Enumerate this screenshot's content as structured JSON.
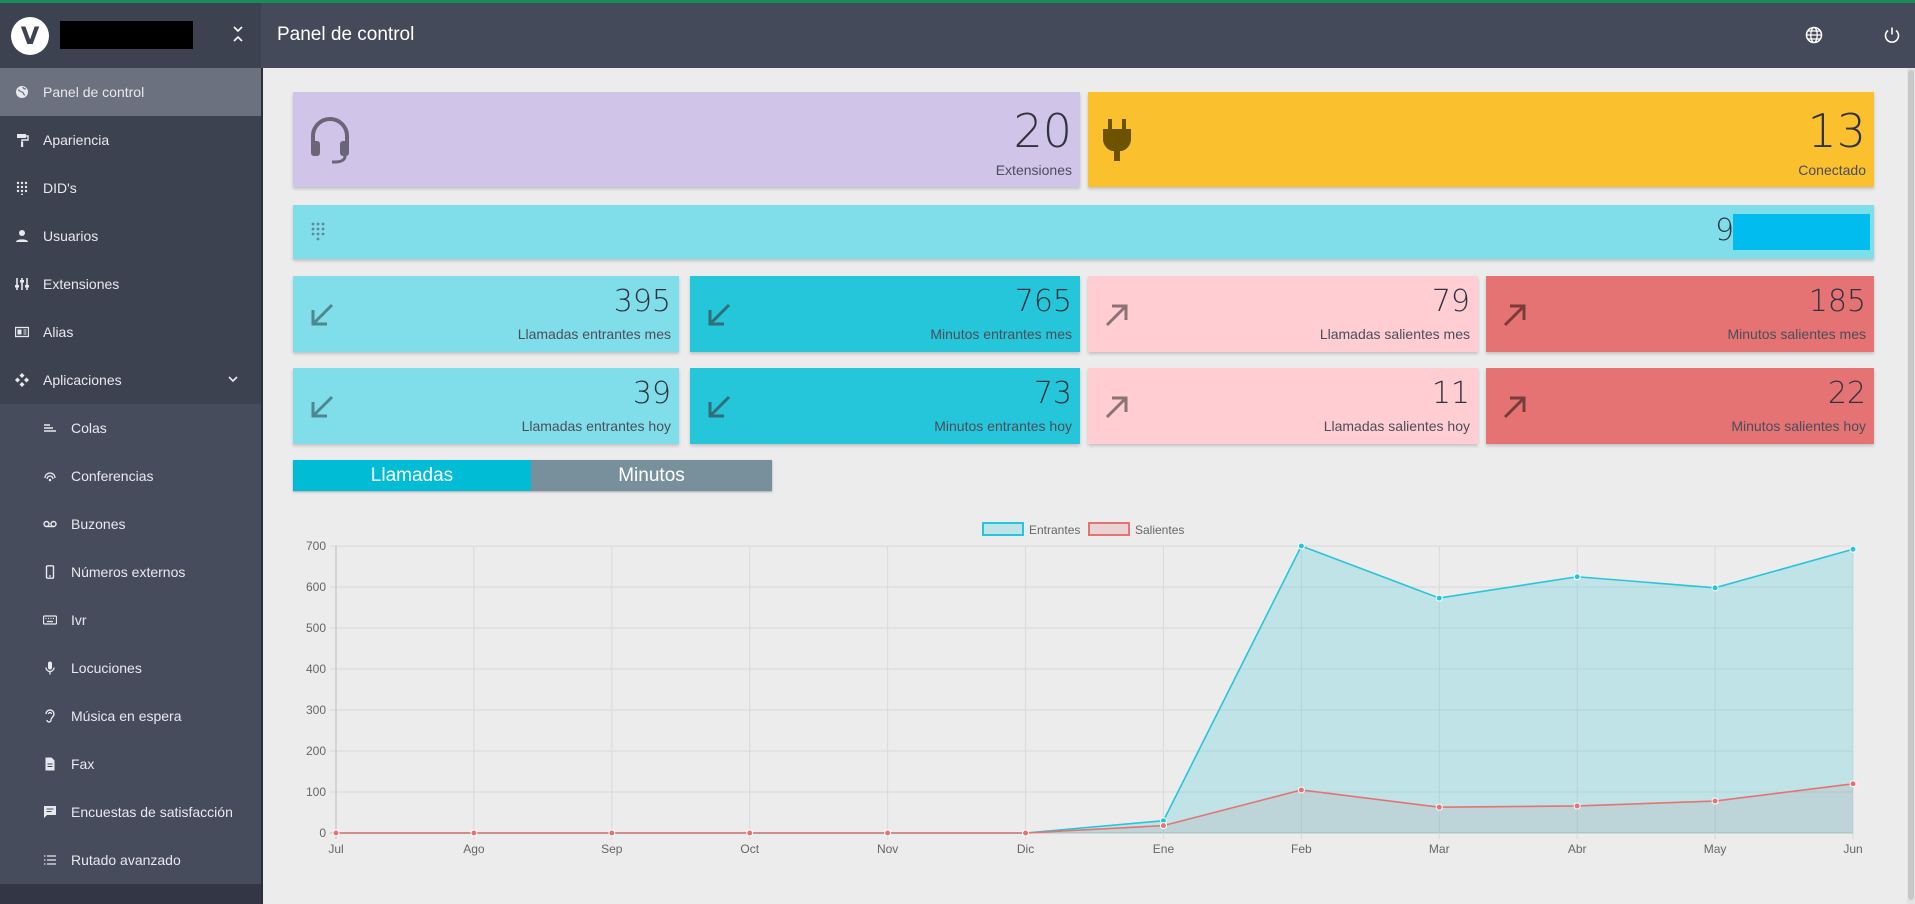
{
  "header": {
    "logo_text": "V",
    "page_title": "Panel de control",
    "globe_icon": "globe-icon",
    "power_icon": "power-icon"
  },
  "sidebar": {
    "items": [
      {
        "label": "Panel de control",
        "icon": "globe-icon",
        "active": true
      },
      {
        "label": "Apariencia",
        "icon": "paint-roller-icon"
      },
      {
        "label": "DID's",
        "icon": "dialpad-icon"
      },
      {
        "label": "Usuarios",
        "icon": "user-icon"
      },
      {
        "label": "Extensiones",
        "icon": "sliders-icon"
      },
      {
        "label": "Alias",
        "icon": "id-card-icon"
      },
      {
        "label": "Aplicaciones",
        "icon": "apps-icon",
        "expanded": true
      }
    ],
    "subitems": [
      {
        "label": "Colas",
        "icon": "queue-icon"
      },
      {
        "label": "Conferencias",
        "icon": "conference-icon"
      },
      {
        "label": "Buzones",
        "icon": "voicemail-icon"
      },
      {
        "label": "Números externos",
        "icon": "mobile-icon"
      },
      {
        "label": "Ivr",
        "icon": "keyboard-icon"
      },
      {
        "label": "Locuciones",
        "icon": "microphone-icon"
      },
      {
        "label": "Música en espera",
        "icon": "hearing-icon"
      },
      {
        "label": "Fax",
        "icon": "document-icon"
      },
      {
        "label": "Encuestas de satisfacción",
        "icon": "comment-icon"
      },
      {
        "label": "Rutado avanzado",
        "icon": "list-icon"
      }
    ]
  },
  "cards": {
    "extensions": {
      "value": "20",
      "label": "Extensiones",
      "icon": "headset-icon",
      "color": "#d1c4e9"
    },
    "connected": {
      "value": "13",
      "label": "Conectado",
      "icon": "plug-icon",
      "color": "#fbc02d"
    },
    "dids": {
      "value": "9",
      "icon": "dialpad-icon",
      "color": "#80deea"
    },
    "month": [
      {
        "value": "395",
        "label": "Llamadas entrantes mes",
        "icon": "arrow-down-left-icon",
        "color": "#80deea"
      },
      {
        "value": "765",
        "label": "Minutos entrantes mes",
        "icon": "arrow-down-left-icon",
        "color": "#26c6da"
      },
      {
        "value": "79",
        "label": "Llamadas salientes mes",
        "icon": "arrow-up-right-icon",
        "color": "#ffcdd2"
      },
      {
        "value": "185",
        "label": "Minutos salientes mes",
        "icon": "arrow-up-right-icon",
        "color": "#e57373"
      }
    ],
    "today": [
      {
        "value": "39",
        "label": "Llamadas entrantes hoy",
        "icon": "arrow-down-left-icon",
        "color": "#80deea"
      },
      {
        "value": "73",
        "label": "Minutos entrantes hoy",
        "icon": "arrow-down-left-icon",
        "color": "#26c6da"
      },
      {
        "value": "11",
        "label": "Llamadas salientes hoy",
        "icon": "arrow-up-right-icon",
        "color": "#ffcdd2"
      },
      {
        "value": "22",
        "label": "Minutos salientes hoy",
        "icon": "arrow-up-right-icon",
        "color": "#e57373"
      }
    ]
  },
  "tabs": {
    "calls": "Llamadas",
    "minutes": "Minutos",
    "active": "Llamadas"
  },
  "chart_data": {
    "type": "area",
    "categories": [
      "Jul",
      "Ago",
      "Sep",
      "Oct",
      "Nov",
      "Dic",
      "Ene",
      "Feb",
      "Mar",
      "Abr",
      "May",
      "Jun"
    ],
    "series": [
      {
        "name": "Entrantes",
        "values": [
          0,
          0,
          0,
          0,
          0,
          0,
          30,
          700,
          573,
          625,
          598,
          692
        ],
        "color": "#26c6da",
        "fill": "rgba(38,198,218,0.2)"
      },
      {
        "name": "Salientes",
        "values": [
          0,
          0,
          0,
          0,
          0,
          0,
          18,
          105,
          63,
          66,
          78,
          120
        ],
        "color": "#e57373",
        "fill": "rgba(229,115,115,0.2)"
      }
    ],
    "yticks": [
      "0",
      "100",
      "200",
      "300",
      "400",
      "500",
      "600",
      "700"
    ],
    "ylim": [
      0,
      700
    ],
    "grid": true,
    "legend": "top"
  }
}
